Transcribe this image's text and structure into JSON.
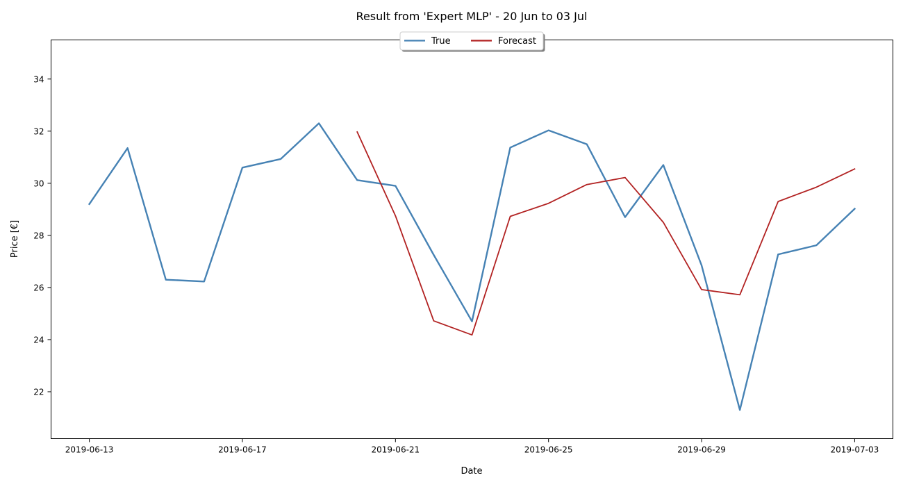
{
  "chart_data": {
    "type": "line",
    "title": "Result from 'Expert MLP' - 20 Jun to 03 Jul",
    "xlabel": "Date",
    "ylabel": "Price [€]",
    "x_range": [
      "2019-06-12",
      "2019-07-04"
    ],
    "ylim": [
      20.2,
      35.5
    ],
    "x_ticks": [
      "2019-06-13",
      "2019-06-17",
      "2019-06-21",
      "2019-06-25",
      "2019-06-29",
      "2019-07-03"
    ],
    "y_ticks": [
      22,
      24,
      26,
      28,
      30,
      32,
      34
    ],
    "grid": false,
    "legend": {
      "placement": "top-center",
      "columns": 2
    },
    "series": [
      {
        "name": "True",
        "color": "#4682b4",
        "x": [
          "2019-06-13",
          "2019-06-14",
          "2019-06-15",
          "2019-06-16",
          "2019-06-17",
          "2019-06-18",
          "2019-06-19",
          "2019-06-20",
          "2019-06-21",
          "2019-06-22",
          "2019-06-23",
          "2019-06-24",
          "2019-06-25",
          "2019-06-26",
          "2019-06-27",
          "2019-06-28",
          "2019-06-29",
          "2019-06-30",
          "2019-07-01",
          "2019-07-02",
          "2019-07-03"
        ],
        "values": [
          29.2,
          31.35,
          26.3,
          26.23,
          30.6,
          30.93,
          32.3,
          30.12,
          29.9,
          27.25,
          24.7,
          31.37,
          32.03,
          31.5,
          28.7,
          30.7,
          26.85,
          21.3,
          27.27,
          27.62,
          29.02
        ]
      },
      {
        "name": "Forecast",
        "color": "#b22222",
        "x": [
          "2019-06-20",
          "2019-06-21",
          "2019-06-22",
          "2019-06-23",
          "2019-06-24",
          "2019-06-25",
          "2019-06-26",
          "2019-06-27",
          "2019-06-28",
          "2019-06-29",
          "2019-06-30",
          "2019-07-01",
          "2019-07-02",
          "2019-07-03"
        ],
        "values": [
          31.97,
          28.75,
          24.72,
          24.18,
          28.73,
          29.23,
          29.95,
          30.22,
          28.5,
          25.92,
          25.72,
          29.3,
          29.85,
          30.55
        ]
      }
    ]
  }
}
